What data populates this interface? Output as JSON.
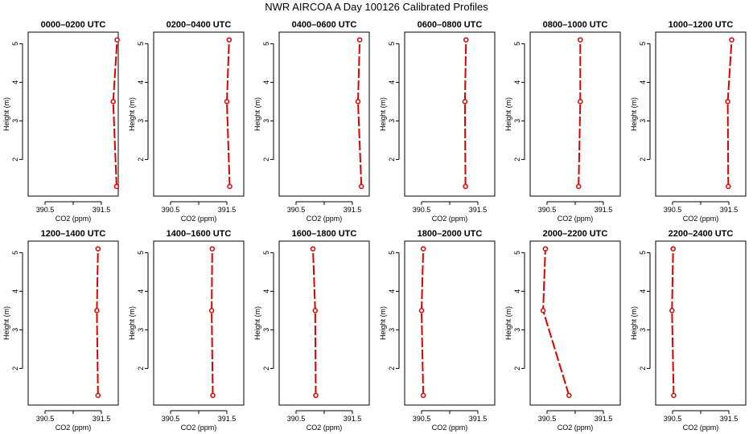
{
  "figure": {
    "title": "NWR AIRCOA A  Day 100126  Calibrated Profiles",
    "line_color": "#dd0000"
  },
  "chart_data": [
    {
      "type": "line",
      "title": "0000–0200 UTC",
      "xlabel": "CO2 (ppm)",
      "ylabel": "Height (m)",
      "xlim": [
        390.2,
        391.8
      ],
      "ylim": [
        1.05,
        5.3
      ],
      "x_ticks": [
        390.5,
        391.0,
        391.5
      ],
      "x_tick_labels": [
        "390.5",
        "",
        "391.5"
      ],
      "y_ticks": [
        2,
        3,
        4,
        5
      ],
      "y_tick_labels": [
        "2",
        "3",
        "4",
        "5"
      ],
      "series": [
        {
          "name": "profile",
          "x": [
            391.77,
            391.71,
            391.78
          ],
          "y": [
            1.3,
            3.5,
            5.1
          ]
        }
      ]
    },
    {
      "type": "line",
      "title": "0200–0400 UTC",
      "xlabel": "CO2 (ppm)",
      "ylabel": "Height (m)",
      "xlim": [
        390.2,
        391.8
      ],
      "ylim": [
        1.05,
        5.3
      ],
      "x_ticks": [
        390.5,
        391.0,
        391.5
      ],
      "x_tick_labels": [
        "390.5",
        "",
        "391.5"
      ],
      "y_ticks": [
        2,
        3,
        4,
        5
      ],
      "y_tick_labels": [
        "2",
        "3",
        "4",
        "5"
      ],
      "series": [
        {
          "name": "profile",
          "x": [
            391.55,
            391.5,
            391.54
          ],
          "y": [
            1.3,
            3.5,
            5.1
          ]
        }
      ]
    },
    {
      "type": "line",
      "title": "0400–0600 UTC",
      "xlabel": "CO2 (ppm)",
      "ylabel": "Height (m)",
      "xlim": [
        390.2,
        391.8
      ],
      "ylim": [
        1.05,
        5.3
      ],
      "x_ticks": [
        390.5,
        391.0,
        391.5
      ],
      "x_tick_labels": [
        "390.5",
        "",
        "391.5"
      ],
      "y_ticks": [
        2,
        3,
        4,
        5
      ],
      "y_tick_labels": [
        "2",
        "3",
        "4",
        "5"
      ],
      "series": [
        {
          "name": "profile",
          "x": [
            391.66,
            391.6,
            391.63
          ],
          "y": [
            1.3,
            3.5,
            5.1
          ]
        }
      ]
    },
    {
      "type": "line",
      "title": "0600–0800 UTC",
      "xlabel": "CO2 (ppm)",
      "ylabel": "Height (m)",
      "xlim": [
        390.2,
        391.8
      ],
      "ylim": [
        1.05,
        5.3
      ],
      "x_ticks": [
        390.5,
        391.0,
        391.5
      ],
      "x_tick_labels": [
        "390.5",
        "",
        "391.5"
      ],
      "y_ticks": [
        2,
        3,
        4,
        5
      ],
      "y_tick_labels": [
        "2",
        "3",
        "4",
        "5"
      ],
      "series": [
        {
          "name": "profile",
          "x": [
            391.28,
            391.27,
            391.29
          ],
          "y": [
            1.3,
            3.5,
            5.1
          ]
        }
      ]
    },
    {
      "type": "line",
      "title": "0800–1000 UTC",
      "xlabel": "CO2 (ppm)",
      "ylabel": "Height (m)",
      "xlim": [
        390.2,
        391.8
      ],
      "ylim": [
        1.05,
        5.3
      ],
      "x_ticks": [
        390.5,
        391.0,
        391.5
      ],
      "x_tick_labels": [
        "390.5",
        "",
        "391.5"
      ],
      "y_ticks": [
        2,
        3,
        4,
        5
      ],
      "y_tick_labels": [
        "2",
        "3",
        "4",
        "5"
      ],
      "series": [
        {
          "name": "profile",
          "x": [
            391.06,
            391.09,
            391.09
          ],
          "y": [
            1.3,
            3.5,
            5.1
          ]
        }
      ]
    },
    {
      "type": "line",
      "title": "1000–1200 UTC",
      "xlabel": "CO2 (ppm)",
      "ylabel": "Height (m)",
      "xlim": [
        390.2,
        391.8
      ],
      "ylim": [
        1.05,
        5.3
      ],
      "x_ticks": [
        390.5,
        391.0,
        391.5
      ],
      "x_tick_labels": [
        "390.5",
        "",
        "391.5"
      ],
      "y_ticks": [
        2,
        3,
        4,
        5
      ],
      "y_tick_labels": [
        "2",
        "3",
        "4",
        "5"
      ],
      "series": [
        {
          "name": "profile",
          "x": [
            391.49,
            391.48,
            391.55
          ],
          "y": [
            1.3,
            3.5,
            5.1
          ]
        }
      ]
    },
    {
      "type": "line",
      "title": "1200–1400 UTC",
      "xlabel": "CO2 (ppm)",
      "ylabel": "Height (m)",
      "xlim": [
        390.2,
        391.8
      ],
      "ylim": [
        1.05,
        5.3
      ],
      "x_ticks": [
        390.5,
        391.0,
        391.5
      ],
      "x_tick_labels": [
        "390.5",
        "",
        "391.5"
      ],
      "y_ticks": [
        2,
        3,
        4,
        5
      ],
      "y_tick_labels": [
        "2",
        "3",
        "4",
        "5"
      ],
      "series": [
        {
          "name": "profile",
          "x": [
            391.44,
            391.42,
            391.44
          ],
          "y": [
            1.3,
            3.5,
            5.1
          ]
        }
      ]
    },
    {
      "type": "line",
      "title": "1400–1600 UTC",
      "xlabel": "CO2 (ppm)",
      "ylabel": "Height (m)",
      "xlim": [
        390.2,
        391.8
      ],
      "ylim": [
        1.05,
        5.3
      ],
      "x_ticks": [
        390.5,
        391.0,
        391.5
      ],
      "x_tick_labels": [
        "390.5",
        "",
        "391.5"
      ],
      "y_ticks": [
        2,
        3,
        4,
        5
      ],
      "y_tick_labels": [
        "2",
        "3",
        "4",
        "5"
      ],
      "series": [
        {
          "name": "profile",
          "x": [
            391.25,
            391.23,
            391.24
          ],
          "y": [
            1.3,
            3.5,
            5.1
          ]
        }
      ]
    },
    {
      "type": "line",
      "title": "1600–1800 UTC",
      "xlabel": "CO2 (ppm)",
      "ylabel": "Height (m)",
      "xlim": [
        390.2,
        391.8
      ],
      "ylim": [
        1.05,
        5.3
      ],
      "x_ticks": [
        390.5,
        391.0,
        391.5
      ],
      "x_tick_labels": [
        "390.5",
        "",
        "391.5"
      ],
      "y_ticks": [
        2,
        3,
        4,
        5
      ],
      "y_tick_labels": [
        "2",
        "3",
        "4",
        "5"
      ],
      "series": [
        {
          "name": "profile",
          "x": [
            390.85,
            390.84,
            390.8
          ],
          "y": [
            1.3,
            3.5,
            5.1
          ]
        }
      ]
    },
    {
      "type": "line",
      "title": "1800–2000 UTC",
      "xlabel": "CO2 (ppm)",
      "ylabel": "Height (m)",
      "xlim": [
        390.2,
        391.8
      ],
      "ylim": [
        1.05,
        5.3
      ],
      "x_ticks": [
        390.5,
        391.0,
        391.5
      ],
      "x_tick_labels": [
        "390.5",
        "",
        "391.5"
      ],
      "y_ticks": [
        2,
        3,
        4,
        5
      ],
      "y_tick_labels": [
        "2",
        "3",
        "4",
        "5"
      ],
      "series": [
        {
          "name": "profile",
          "x": [
            390.53,
            390.5,
            390.53
          ],
          "y": [
            1.3,
            3.5,
            5.1
          ]
        }
      ]
    },
    {
      "type": "line",
      "title": "2000–2200 UTC",
      "xlabel": "CO2 (ppm)",
      "ylabel": "Height (m)",
      "xlim": [
        390.2,
        391.8
      ],
      "ylim": [
        1.05,
        5.3
      ],
      "x_ticks": [
        390.5,
        391.0,
        391.5
      ],
      "x_tick_labels": [
        "390.5",
        "",
        "391.5"
      ],
      "y_ticks": [
        2,
        3,
        4,
        5
      ],
      "y_tick_labels": [
        "2",
        "3",
        "4",
        "5"
      ],
      "series": [
        {
          "name": "profile",
          "x": [
            390.89,
            390.43,
            390.47
          ],
          "y": [
            1.3,
            3.5,
            5.1
          ]
        }
      ]
    },
    {
      "type": "line",
      "title": "2200–2400 UTC",
      "xlabel": "CO2 (ppm)",
      "ylabel": "Height (m)",
      "xlim": [
        390.2,
        391.8
      ],
      "ylim": [
        1.05,
        5.3
      ],
      "x_ticks": [
        390.5,
        391.0,
        391.5
      ],
      "x_tick_labels": [
        "390.5",
        "",
        "391.5"
      ],
      "y_ticks": [
        2,
        3,
        4,
        5
      ],
      "y_tick_labels": [
        "2",
        "3",
        "4",
        "5"
      ],
      "series": [
        {
          "name": "profile",
          "x": [
            390.52,
            390.49,
            390.51
          ],
          "y": [
            1.3,
            3.5,
            5.1
          ]
        }
      ]
    }
  ]
}
